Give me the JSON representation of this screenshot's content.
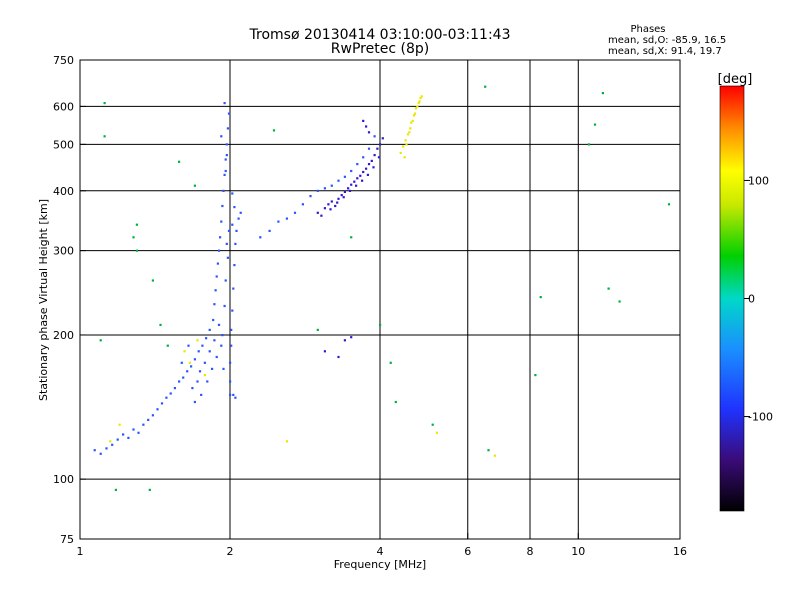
{
  "chart_data": {
    "type": "scatter",
    "title": "Tromsø 20130414 03:10:00-03:11:43",
    "subtitle": "RwPretec (8p)",
    "stats": {
      "heading": "Phases",
      "line1": "mean, sd,O: -85.9, 16.5",
      "line2": "mean, sd,X:  91.4, 19.7"
    },
    "xlabel": "Frequency [MHz]",
    "ylabel": "Stationary phase Virtual Height [km]",
    "x_scale": "log",
    "y_scale": "log",
    "xlim": [
      1,
      16
    ],
    "ylim": [
      75,
      750
    ],
    "x_ticks": [
      1,
      2,
      4,
      6,
      8,
      10,
      16
    ],
    "x_tick_labels": [
      "1",
      "2",
      "4",
      "6",
      "8",
      "10",
      "16"
    ],
    "y_ticks": [
      75,
      100,
      200,
      300,
      400,
      500,
      600,
      750
    ],
    "y_tick_labels": [
      "75",
      "100",
      "200",
      "300",
      "400",
      "500",
      "600",
      "750"
    ],
    "grid_x": [
      2,
      4,
      6,
      8,
      10
    ],
    "grid_y": [
      100,
      200,
      300,
      400,
      500,
      600
    ],
    "grid": true,
    "colorbar": {
      "label": "[deg]",
      "range": [
        -180,
        180
      ],
      "ticks": [
        100,
        0,
        -100
      ],
      "tick_labels": [
        "100",
        "0",
        "-100"
      ]
    },
    "series": [
      {
        "mode": "O",
        "phase_deg": -100,
        "color": "#2a55ff",
        "points": [
          [
            1.07,
            115
          ],
          [
            1.1,
            113
          ],
          [
            1.13,
            116
          ],
          [
            1.16,
            118
          ],
          [
            1.19,
            121
          ],
          [
            1.22,
            124
          ],
          [
            1.25,
            122
          ],
          [
            1.28,
            127
          ],
          [
            1.31,
            125
          ],
          [
            1.34,
            130
          ],
          [
            1.37,
            133
          ],
          [
            1.4,
            136
          ],
          [
            1.43,
            140
          ],
          [
            1.46,
            144
          ],
          [
            1.49,
            148
          ],
          [
            1.52,
            151
          ],
          [
            1.55,
            155
          ],
          [
            1.58,
            160
          ],
          [
            1.61,
            163
          ],
          [
            1.64,
            168
          ],
          [
            1.67,
            172
          ],
          [
            1.7,
            178
          ],
          [
            1.73,
            185
          ],
          [
            1.76,
            190
          ],
          [
            1.79,
            197
          ],
          [
            1.82,
            205
          ],
          [
            1.85,
            215
          ],
          [
            1.86,
            232
          ],
          [
            1.87,
            248
          ],
          [
            1.88,
            265
          ],
          [
            1.89,
            282
          ],
          [
            1.9,
            300
          ],
          [
            1.91,
            320
          ],
          [
            1.92,
            345
          ],
          [
            1.93,
            372
          ],
          [
            1.94,
            400
          ],
          [
            1.95,
            432
          ],
          [
            1.96,
            465
          ],
          [
            1.97,
            500
          ],
          [
            1.98,
            540
          ],
          [
            1.99,
            580
          ],
          [
            2.0,
            150
          ],
          [
            2.0,
            160
          ],
          [
            2.0,
            175
          ],
          [
            2.01,
            190
          ],
          [
            2.01,
            205
          ],
          [
            2.02,
            225
          ],
          [
            2.03,
            250
          ],
          [
            2.04,
            280
          ],
          [
            2.05,
            310
          ],
          [
            2.06,
            330
          ],
          [
            2.08,
            350
          ],
          [
            2.1,
            360
          ],
          [
            1.97,
            310
          ],
          [
            1.99,
            330
          ],
          [
            2.02,
            340
          ],
          [
            1.88,
            180
          ],
          [
            1.84,
            170
          ],
          [
            1.8,
            160
          ],
          [
            1.75,
            150
          ],
          [
            1.7,
            145
          ],
          [
            1.9,
            210
          ],
          [
            1.93,
            200
          ],
          [
            1.95,
            230
          ],
          [
            1.96,
            260
          ],
          [
            1.98,
            290
          ],
          [
            1.92,
            190
          ],
          [
            1.94,
            170
          ],
          [
            2.03,
            150
          ],
          [
            2.05,
            148
          ],
          [
            1.78,
            175
          ],
          [
            1.82,
            185
          ],
          [
            1.86,
            195
          ],
          [
            1.6,
            175
          ],
          [
            1.65,
            190
          ],
          [
            2.3,
            320
          ],
          [
            2.4,
            330
          ],
          [
            2.5,
            345
          ],
          [
            2.6,
            350
          ],
          [
            2.7,
            360
          ],
          [
            2.8,
            375
          ],
          [
            2.9,
            390
          ],
          [
            3.0,
            400
          ],
          [
            3.1,
            405
          ],
          [
            3.2,
            410
          ],
          [
            3.3,
            420
          ],
          [
            3.4,
            428
          ],
          [
            3.5,
            440
          ],
          [
            3.6,
            455
          ],
          [
            3.7,
            470
          ],
          [
            3.8,
            490
          ],
          [
            3.9,
            520
          ],
          [
            1.72,
            160
          ],
          [
            1.74,
            168
          ],
          [
            1.68,
            155
          ],
          [
            1.92,
            520
          ],
          [
            1.95,
            610
          ],
          [
            1.97,
            475
          ],
          [
            2.02,
            395
          ],
          [
            2.04,
            370
          ],
          [
            1.96,
            440
          ]
        ]
      },
      {
        "mode": "O-high",
        "phase_deg": -125,
        "color": "#2e1bd0",
        "points": [
          [
            3.0,
            360
          ],
          [
            3.1,
            368
          ],
          [
            3.15,
            375
          ],
          [
            3.2,
            380
          ],
          [
            3.25,
            372
          ],
          [
            3.3,
            385
          ],
          [
            3.35,
            392
          ],
          [
            3.4,
            398
          ],
          [
            3.45,
            405
          ],
          [
            3.5,
            412
          ],
          [
            3.55,
            418
          ],
          [
            3.6,
            425
          ],
          [
            3.65,
            430
          ],
          [
            3.7,
            438
          ],
          [
            3.75,
            445
          ],
          [
            3.8,
            455
          ],
          [
            3.85,
            462
          ],
          [
            3.9,
            475
          ],
          [
            3.95,
            490
          ],
          [
            4.0,
            500
          ],
          [
            4.05,
            515
          ],
          [
            3.05,
            355
          ],
          [
            3.18,
            366
          ],
          [
            3.28,
            378
          ],
          [
            3.38,
            388
          ],
          [
            3.48,
            400
          ],
          [
            3.58,
            410
          ],
          [
            3.68,
            420
          ],
          [
            3.78,
            432
          ],
          [
            3.88,
            448
          ],
          [
            3.98,
            470
          ],
          [
            3.7,
            560
          ],
          [
            3.75,
            545
          ],
          [
            3.8,
            530
          ],
          [
            3.3,
            180
          ],
          [
            3.1,
            185
          ],
          [
            3.4,
            195
          ],
          [
            3.5,
            198
          ]
        ]
      },
      {
        "mode": "X",
        "phase_deg": 95,
        "color": "#e9e600",
        "points": [
          [
            4.4,
            480
          ],
          [
            4.45,
            495
          ],
          [
            4.5,
            510
          ],
          [
            4.55,
            525
          ],
          [
            4.6,
            540
          ],
          [
            4.65,
            560
          ],
          [
            4.7,
            580
          ],
          [
            4.75,
            600
          ],
          [
            4.8,
            615
          ],
          [
            4.85,
            630
          ],
          [
            4.48,
            470
          ],
          [
            4.52,
            500
          ],
          [
            4.58,
            530
          ],
          [
            4.62,
            555
          ],
          [
            4.68,
            575
          ],
          [
            4.72,
            595
          ],
          [
            4.78,
            610
          ],
          [
            4.82,
            625
          ],
          [
            1.62,
            185
          ],
          [
            1.66,
            175
          ],
          [
            1.72,
            195
          ],
          [
            1.78,
            165
          ],
          [
            1.15,
            120
          ],
          [
            1.2,
            130
          ],
          [
            2.6,
            120
          ],
          [
            5.2,
            125
          ],
          [
            6.8,
            112
          ]
        ]
      },
      {
        "mode": "noise",
        "phase_deg": 0,
        "color": "#00b040",
        "points": [
          [
            1.12,
            610
          ],
          [
            1.12,
            520
          ],
          [
            1.3,
            300
          ],
          [
            1.3,
            340
          ],
          [
            1.4,
            260
          ],
          [
            1.45,
            210
          ],
          [
            2.45,
            535
          ],
          [
            3.0,
            205
          ],
          [
            3.5,
            320
          ],
          [
            4.0,
            210
          ],
          [
            4.2,
            175
          ],
          [
            4.3,
            145
          ],
          [
            5.1,
            130
          ],
          [
            6.5,
            660
          ],
          [
            6.6,
            115
          ],
          [
            8.2,
            165
          ],
          [
            8.4,
            240
          ],
          [
            10.5,
            500
          ],
          [
            10.8,
            550
          ],
          [
            11.2,
            640
          ],
          [
            11.5,
            250
          ],
          [
            12.1,
            235
          ],
          [
            15.2,
            375
          ],
          [
            1.1,
            195
          ],
          [
            1.18,
            95
          ],
          [
            1.38,
            95
          ],
          [
            1.5,
            190
          ],
          [
            1.58,
            460
          ],
          [
            1.7,
            410
          ],
          [
            1.28,
            320
          ]
        ]
      }
    ]
  }
}
